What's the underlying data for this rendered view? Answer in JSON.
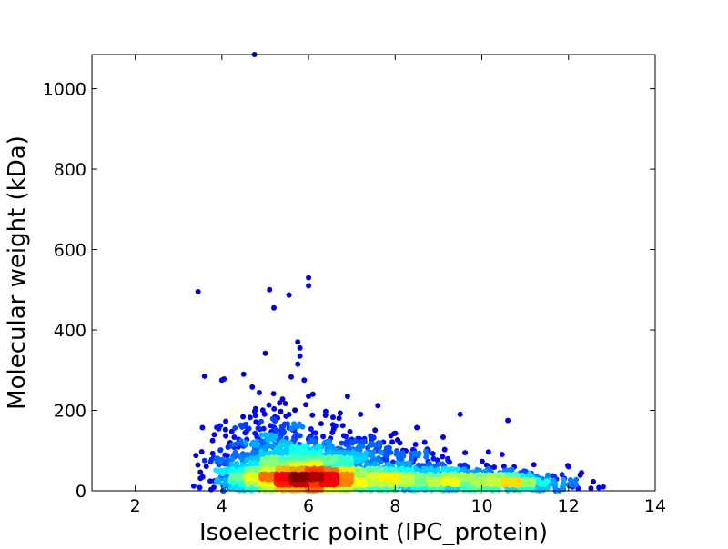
{
  "chart_data": {
    "type": "scatter",
    "title": "",
    "xlabel": "Isoelectric point (IPC_protein)",
    "ylabel": "Molecular weight (kDa)",
    "xlim": [
      1,
      14
    ],
    "ylim": [
      0,
      1085
    ],
    "xticks": [
      2,
      4,
      6,
      8,
      10,
      12,
      14
    ],
    "yticks": [
      0,
      200,
      400,
      600,
      800,
      1000
    ],
    "grid": false,
    "legend": "none",
    "colormap": "jet (point density)",
    "colors": {
      "low_density": "#00008f",
      "mid_density": "#00ffff",
      "high_density": "#ff0000",
      "peak_density": "#800000"
    },
    "outliers": [
      {
        "x": 4.75,
        "y": 1085
      },
      {
        "x": 3.45,
        "y": 495
      },
      {
        "x": 5.1,
        "y": 500
      },
      {
        "x": 5.2,
        "y": 455
      },
      {
        "x": 5.55,
        "y": 487
      },
      {
        "x": 6.0,
        "y": 530
      },
      {
        "x": 6.0,
        "y": 510
      },
      {
        "x": 5.0,
        "y": 342
      },
      {
        "x": 5.75,
        "y": 370
      },
      {
        "x": 5.8,
        "y": 355
      },
      {
        "x": 5.8,
        "y": 335
      },
      {
        "x": 5.75,
        "y": 315
      },
      {
        "x": 3.6,
        "y": 285
      },
      {
        "x": 4.0,
        "y": 275
      },
      {
        "x": 4.05,
        "y": 278
      },
      {
        "x": 4.5,
        "y": 290
      },
      {
        "x": 5.6,
        "y": 283
      },
      {
        "x": 5.9,
        "y": 275
      },
      {
        "x": 6.9,
        "y": 235
      },
      {
        "x": 7.6,
        "y": 212
      },
      {
        "x": 9.5,
        "y": 190
      },
      {
        "x": 10.6,
        "y": 175
      },
      {
        "x": 3.55,
        "y": 157
      },
      {
        "x": 8.5,
        "y": 157
      },
      {
        "x": 6.1,
        "y": 240
      },
      {
        "x": 6.0,
        "y": 235
      },
      {
        "x": 5.4,
        "y": 228
      },
      {
        "x": 4.7,
        "y": 258
      },
      {
        "x": 7.2,
        "y": 190
      },
      {
        "x": 11.2,
        "y": 65
      },
      {
        "x": 12.0,
        "y": 60
      },
      {
        "x": 12.3,
        "y": 45
      },
      {
        "x": 12.7,
        "y": 8
      },
      {
        "x": 12.8,
        "y": 10
      },
      {
        "x": 3.35,
        "y": 12
      },
      {
        "x": 3.4,
        "y": 88
      },
      {
        "x": 3.6,
        "y": 75
      }
    ],
    "density_clusters": [
      {
        "cx": 5.9,
        "cy": 30,
        "sx": 0.75,
        "sy": 18,
        "n": 1500
      },
      {
        "cx": 5.6,
        "cy": 60,
        "sx": 0.9,
        "sy": 35,
        "n": 800
      },
      {
        "cx": 8.0,
        "cy": 28,
        "sx": 1.1,
        "sy": 16,
        "n": 700
      },
      {
        "cx": 9.8,
        "cy": 25,
        "sx": 0.8,
        "sy": 14,
        "n": 450
      },
      {
        "cx": 11.0,
        "cy": 20,
        "sx": 0.6,
        "sy": 12,
        "n": 200
      },
      {
        "cx": 5.3,
        "cy": 120,
        "sx": 0.7,
        "sy": 45,
        "n": 220
      },
      {
        "cx": 7.2,
        "cy": 80,
        "sx": 1.0,
        "sy": 30,
        "n": 300
      }
    ]
  }
}
